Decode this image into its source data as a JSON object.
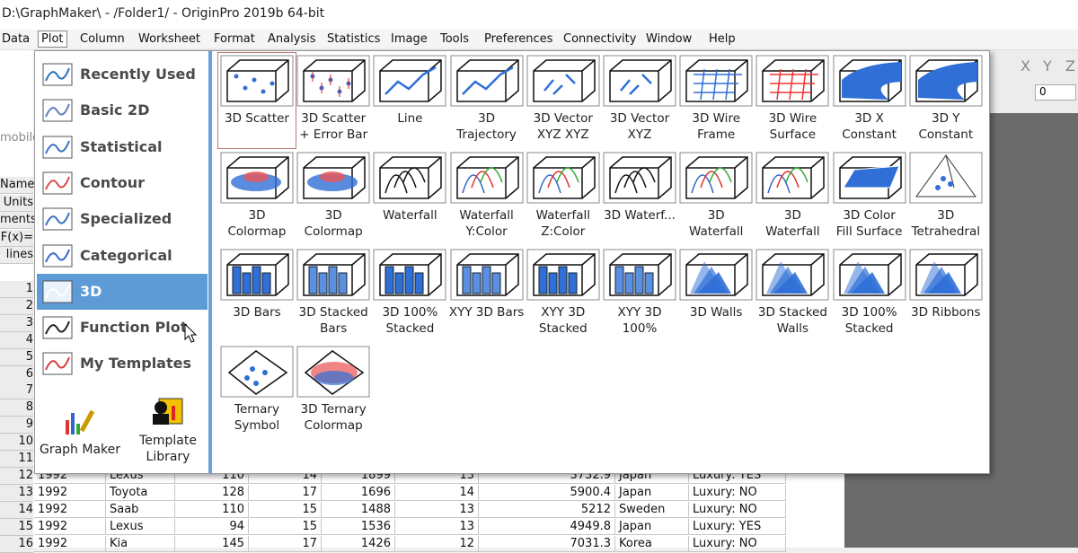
{
  "title_bar": {
    "title": "D:\\GraphMaker\\ - /Folder1/ - OriginPro 2019b 64-bit"
  },
  "menu": [
    "Data",
    "Plot",
    "Column",
    "Worksheet",
    "Format",
    "Analysis",
    "Statistics",
    "Image",
    "Tools",
    "Preferences",
    "Connectivity",
    "Window",
    "Help"
  ],
  "toolbar": {
    "axis_letters": [
      "X",
      "Y",
      "Z"
    ],
    "field": "0",
    "tab": "mobile"
  },
  "worksheet": {
    "row_labels": [
      "Name",
      "Units",
      "ments",
      "F(x)=",
      "lines"
    ],
    "row_numbers": [
      "1",
      "2",
      "3",
      "4",
      "5",
      "6",
      "7",
      "8",
      "9",
      "10",
      "11",
      "12",
      "13",
      "14",
      "15",
      "16"
    ],
    "rows": [
      [
        1992,
        "Lexus",
        110,
        14,
        1899,
        13,
        3732.9,
        "Japan",
        "Luxury: YES"
      ],
      [
        1992,
        "Toyota",
        128,
        17,
        1696,
        14,
        5900.4,
        "Japan",
        "Luxury: NO"
      ],
      [
        1992,
        "Saab",
        110,
        15,
        1488,
        13,
        5212,
        "Sweden",
        "Luxury: NO"
      ],
      [
        1992,
        "Lexus",
        94,
        15,
        1536,
        13,
        4949.8,
        "Japan",
        "Luxury: YES"
      ],
      [
        1992,
        "Kia",
        145,
        17,
        1426,
        12,
        7031.3,
        "Korea",
        "Luxury: NO"
      ]
    ]
  },
  "plot_menu": {
    "categories": [
      "Recently Used",
      "Basic 2D",
      "Statistical",
      "Contour",
      "Specialized",
      "Categorical",
      "3D",
      "Function Plot",
      "My Templates"
    ],
    "buttons": [
      "Graph Maker",
      "Template\nLibrary"
    ],
    "templates": [
      "3D Scatter",
      "3D Scatter\n+ Error Bar",
      "Line",
      "3D\nTrajectory",
      "3D Vector\nXYZ XYZ",
      "3D Vector\nXYZ",
      "3D Wire\nFrame",
      "3D Wire\nSurface",
      "3D X\nConstant",
      "3D Y\nConstant",
      "3D\nColormap",
      "3D\nColormap",
      "Waterfall",
      "Waterfall\nY:Color",
      "Waterfall\nZ:Color",
      "3D Waterf...",
      "3D\nWaterfall",
      "3D\nWaterfall",
      "3D Color\nFill Surface",
      "3D\nTetrahedral",
      "3D Bars",
      "3D Stacked\nBars",
      "3D 100%\nStacked",
      "XYY 3D Bars",
      "XYY 3D\nStacked",
      "XYY 3D\n100%",
      "3D Walls",
      "3D Stacked\nWalls",
      "3D 100%\nStacked",
      "3D Ribbons",
      "Ternary\nSymbol",
      "3D Ternary\nColormap"
    ]
  }
}
